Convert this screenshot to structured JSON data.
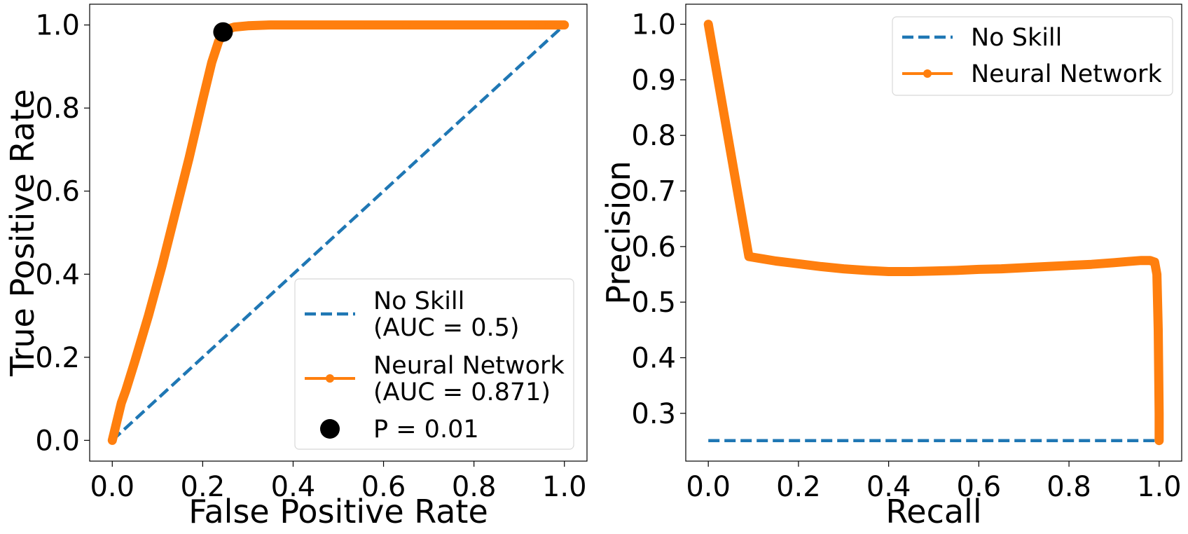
{
  "chart_data": [
    {
      "type": "line",
      "panel": "roc",
      "xlabel": "False Positive Rate",
      "ylabel": "True Positive Rate",
      "xlim": [
        -0.05,
        1.05
      ],
      "ylim": [
        -0.05,
        1.05
      ],
      "xticks": [
        0.0,
        0.2,
        0.4,
        0.6,
        0.8,
        1.0
      ],
      "yticks": [
        0.0,
        0.2,
        0.4,
        0.6,
        0.8,
        1.0
      ],
      "xtick_labels": [
        "0.0",
        "0.2",
        "0.4",
        "0.6",
        "0.8",
        "1.0"
      ],
      "ytick_labels": [
        "0.0",
        "0.2",
        "0.4",
        "0.6",
        "0.8",
        "1.0"
      ],
      "grid": false,
      "legend_position": "lower-right",
      "series": [
        {
          "name": "No Skill",
          "legend_lines": [
            "No Skill",
            "(AUC = 0.5)"
          ],
          "style": "dashed",
          "color": "#1f77b4",
          "x": [
            0.0,
            1.0
          ],
          "y": [
            0.0,
            1.0
          ]
        },
        {
          "name": "Neural Network",
          "legend_lines": [
            "Neural Network",
            "(AUC = 0.871)"
          ],
          "style": "line-marker",
          "color": "#ff7f0e",
          "x": [
            0.0,
            0.02,
            0.03,
            0.05,
            0.08,
            0.11,
            0.14,
            0.17,
            0.2,
            0.22,
            0.235,
            0.245,
            0.255,
            0.27,
            0.3,
            0.35,
            0.45,
            0.55,
            0.65,
            0.75,
            0.85,
            0.9,
            0.93,
            0.95,
            0.97,
            1.0
          ],
          "y": [
            0.0,
            0.09,
            0.12,
            0.19,
            0.3,
            0.42,
            0.55,
            0.68,
            0.82,
            0.91,
            0.96,
            0.98,
            0.99,
            0.995,
            0.998,
            1.0,
            1.0,
            1.0,
            1.0,
            1.0,
            1.0,
            1.0,
            1.0,
            1.0,
            1.0,
            1.0
          ]
        },
        {
          "name": "P = 0.01",
          "legend_lines": [
            "P = 0.01"
          ],
          "style": "point",
          "color": "#000000",
          "x": [
            0.245
          ],
          "y": [
            0.983
          ]
        }
      ]
    },
    {
      "type": "line",
      "panel": "pr",
      "xlabel": "Recall",
      "ylabel": "Precision",
      "xlim": [
        -0.05,
        1.05
      ],
      "ylim": [
        0.214,
        1.036
      ],
      "xticks": [
        0.0,
        0.2,
        0.4,
        0.6,
        0.8,
        1.0
      ],
      "yticks": [
        0.3,
        0.4,
        0.5,
        0.6,
        0.7,
        0.8,
        0.9,
        1.0
      ],
      "xtick_labels": [
        "0.0",
        "0.2",
        "0.4",
        "0.6",
        "0.8",
        "1.0"
      ],
      "ytick_labels": [
        "0.3",
        "0.4",
        "0.5",
        "0.6",
        "0.7",
        "0.8",
        "0.9",
        "1.0"
      ],
      "grid": false,
      "legend_position": "upper-right",
      "series": [
        {
          "name": "No Skill",
          "legend_lines": [
            "No Skill"
          ],
          "style": "dashed",
          "color": "#1f77b4",
          "x": [
            0.0,
            1.0
          ],
          "y": [
            0.251,
            0.251
          ]
        },
        {
          "name": "Neural Network",
          "legend_lines": [
            "Neural Network"
          ],
          "style": "line-marker",
          "color": "#ff7f0e",
          "x": [
            0.0,
            0.09,
            0.12,
            0.15,
            0.2,
            0.25,
            0.3,
            0.35,
            0.4,
            0.45,
            0.5,
            0.55,
            0.6,
            0.65,
            0.7,
            0.75,
            0.8,
            0.85,
            0.9,
            0.93,
            0.96,
            0.98,
            0.99,
            0.995,
            0.998,
            1.0,
            1.0,
            1.0
          ],
          "y": [
            1.0,
            0.582,
            0.578,
            0.574,
            0.569,
            0.564,
            0.56,
            0.557,
            0.555,
            0.555,
            0.556,
            0.557,
            0.559,
            0.56,
            0.562,
            0.564,
            0.566,
            0.568,
            0.571,
            0.573,
            0.575,
            0.575,
            0.572,
            0.55,
            0.45,
            0.3,
            0.26,
            0.251
          ]
        }
      ]
    }
  ]
}
